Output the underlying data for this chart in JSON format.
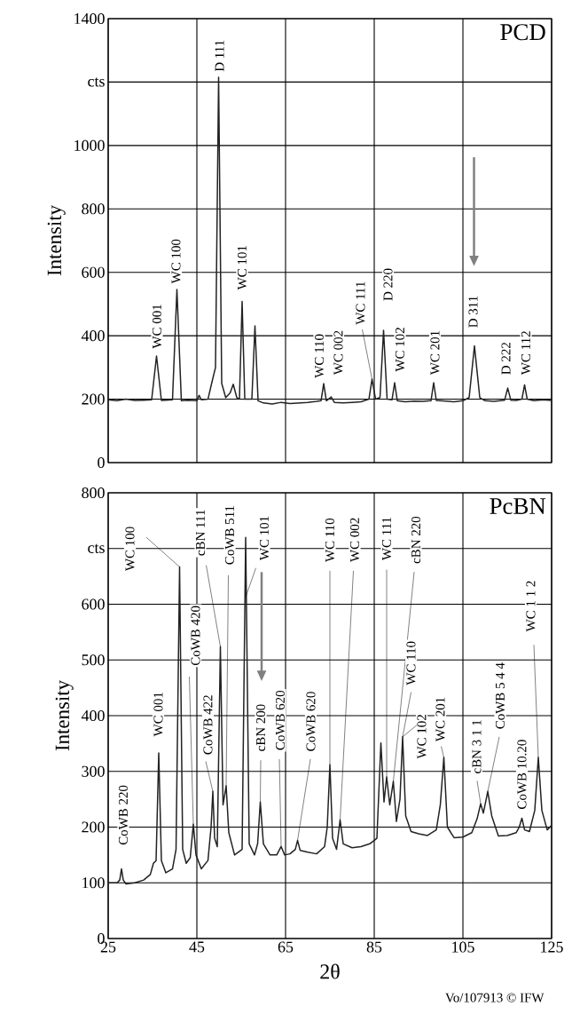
{
  "chart_data": [
    {
      "type": "line",
      "title": "PCD",
      "ylabel": "Intensity",
      "xlim": [
        25,
        125
      ],
      "ylim": [
        0,
        1400
      ],
      "xticks": [
        25,
        45,
        65,
        85,
        105,
        125
      ],
      "yticks": [
        0,
        200,
        400,
        600,
        800,
        1000,
        {
          "value": 1200,
          "label": "cts"
        },
        1400
      ],
      "tick_labels": "y",
      "grid": true,
      "series": [
        {
          "color": "#222222",
          "x": [
            25,
            27,
            29,
            31,
            33,
            34.8,
            35.9,
            37,
            39.5,
            40.5,
            41.5,
            43,
            45,
            45.5,
            46,
            47.5,
            48.4,
            49.2,
            49.9,
            50.6,
            51.5,
            52.5,
            53.2,
            54,
            54.6,
            55.2,
            55.8,
            57.4,
            58.1,
            58.8,
            60,
            62,
            64,
            66,
            68,
            70,
            72,
            73,
            73.6,
            74.2,
            75.3,
            76,
            78,
            80,
            82,
            83.8,
            84.5,
            85.3,
            86.3,
            87.1,
            87.9,
            89,
            89.6,
            90.2,
            92,
            94,
            96,
            97.8,
            98.4,
            99,
            101,
            103,
            105,
            106.4,
            107.6,
            108.8,
            110,
            112,
            114.4,
            115.1,
            115.8,
            117,
            118.3,
            118.9,
            119.5,
            121,
            123,
            125
          ],
          "values": [
            198,
            195,
            200,
            196,
            197,
            198,
            336,
            196,
            198,
            546,
            195,
            197,
            195,
            212,
            198,
            200,
            254,
            300,
            1215,
            250,
            205,
            220,
            247,
            205,
            200,
            508,
            200,
            200,
            431,
            195,
            188,
            185,
            190,
            186,
            188,
            190,
            193,
            195,
            249,
            195,
            207,
            190,
            188,
            190,
            192,
            200,
            263,
            200,
            205,
            417,
            200,
            198,
            252,
            195,
            192,
            194,
            193,
            195,
            252,
            196,
            194,
            192,
            195,
            205,
            368,
            205,
            195,
            193,
            197,
            235,
            197,
            196,
            200,
            245,
            200,
            195,
            198,
            196
          ]
        }
      ],
      "annotations": [
        {
          "text": "WC 001",
          "x": 35.9,
          "y": 336
        },
        {
          "text": "WC 100",
          "x": 40.5,
          "y": 546
        },
        {
          "text": "D 111",
          "x": 49.9,
          "y": 1215
        },
        {
          "text": "WC 101",
          "x": 55.2,
          "y": 508
        },
        {
          "text": "WC 110",
          "x": 73.6,
          "y": 249
        },
        {
          "text": "WC 002",
          "x": 75.3,
          "y": 207
        },
        {
          "text": "WC 111",
          "x": 84.5,
          "y": 263
        },
        {
          "text": "D 220",
          "x": 87.1,
          "y": 417
        },
        {
          "text": "WC 102",
          "x": 89.6,
          "y": 252
        },
        {
          "text": "WC 201",
          "x": 98.4,
          "y": 252
        },
        {
          "text": "D 311",
          "x": 107.6,
          "y": 368
        },
        {
          "text": "D 222",
          "x": 115.1,
          "y": 235
        },
        {
          "text": "WC 112",
          "x": 118.9,
          "y": 245
        }
      ]
    },
    {
      "type": "line",
      "title": "PcBN",
      "xlabel": "2θ",
      "ylabel": "Intensity",
      "xlim": [
        25,
        125
      ],
      "ylim": [
        0,
        800
      ],
      "xticks": [
        25,
        45,
        65,
        85,
        105,
        125
      ],
      "yticks": [
        0,
        100,
        200,
        300,
        400,
        500,
        600,
        {
          "value": 700,
          "label": "cts"
        },
        800
      ],
      "grid": true,
      "series": [
        {
          "color": "#222222",
          "x": [
            25,
            27,
            27.6,
            28,
            28.4,
            29,
            31,
            33,
            34.5,
            35.2,
            35.8,
            36.4,
            37,
            38,
            39.5,
            40.3,
            41.1,
            41.8,
            42.6,
            43.5,
            44.2,
            44.8,
            46,
            47.5,
            48.2,
            48.6,
            49,
            49.6,
            50.3,
            50.9,
            51.6,
            52.2,
            53.5,
            55.2,
            56.0,
            56.8,
            58,
            58.7,
            59.3,
            60,
            61.5,
            63,
            64,
            64.8,
            66,
            67.2,
            67.7,
            68.3,
            70,
            72,
            73.8,
            74.4,
            75,
            75.6,
            76.5,
            77.3,
            78,
            80,
            82,
            84,
            85.6,
            86.5,
            87.2,
            87.8,
            88.5,
            89.3,
            90,
            90.8,
            91.4,
            92.1,
            93.3,
            95,
            97,
            99,
            99.9,
            100.7,
            101.5,
            103,
            105,
            107,
            108.2,
            109,
            109.6,
            110.6,
            111.5,
            113,
            115,
            117,
            117.7,
            118.3,
            118.9,
            120,
            121.2,
            122,
            122.8,
            124,
            125
          ],
          "values": [
            100,
            100,
            105,
            125,
            105,
            98,
            100,
            105,
            115,
            135,
            140,
            333,
            140,
            118,
            125,
            160,
            667,
            160,
            135,
            145,
            205,
            150,
            125,
            140,
            200,
            264,
            180,
            165,
            524,
            240,
            274,
            190,
            150,
            160,
            720,
            170,
            150,
            170,
            245,
            170,
            150,
            150,
            165,
            150,
            152,
            160,
            176,
            158,
            155,
            152,
            165,
            200,
            312,
            180,
            160,
            213,
            170,
            163,
            165,
            170,
            180,
            351,
            245,
            290,
            240,
            282,
            210,
            250,
            362,
            220,
            192,
            188,
            185,
            195,
            240,
            325,
            200,
            181,
            182,
            190,
            215,
            242,
            225,
            264,
            220,
            184,
            185,
            190,
            200,
            216,
            195,
            192,
            230,
            325,
            230,
            195,
            203
          ]
        }
      ],
      "annotations": [
        {
          "text": "CoWB 220",
          "x": 28,
          "y": 125
        },
        {
          "text": "WC 001",
          "x": 36.4,
          "y": 333
        },
        {
          "text": "WC 100",
          "x": 41.1,
          "y": 667
        },
        {
          "text": "CoWB 420",
          "x": 44.2,
          "y": 205
        },
        {
          "text": "CoWB 422",
          "x": 48.6,
          "y": 264
        },
        {
          "text": "cBN 111",
          "x": 50.3,
          "y": 524
        },
        {
          "text": "CoWB 511",
          "x": 51.6,
          "y": 274
        },
        {
          "text": "WC 101",
          "x": 56.0,
          "y": 720
        },
        {
          "text": "cBN 200",
          "x": 59.3,
          "y": 245
        },
        {
          "text": "CoWB 620",
          "x": 64.0,
          "y": 165
        },
        {
          "text": "CoWB 620",
          "x": 67.7,
          "y": 176
        },
        {
          "text": "WC 110",
          "x": 75.0,
          "y": 312
        },
        {
          "text": "WC 002",
          "x": 77.3,
          "y": 213
        },
        {
          "text": "WC 111",
          "x": 87.8,
          "y": 290
        },
        {
          "text": "cBN 220",
          "x": 89.3,
          "y": 282
        },
        {
          "text": "WC 110",
          "x": 91.4,
          "y": 362
        },
        {
          "text": "WC 102",
          "x": 91.4,
          "y": 362
        },
        {
          "text": "WC 201",
          "x": 100.7,
          "y": 325
        },
        {
          "text": "cBN 3 1 1",
          "x": 109,
          "y": 242
        },
        {
          "text": "CoWB 5 4 4",
          "x": 110.6,
          "y": 264
        },
        {
          "text": "CoWB 10.20",
          "x": 118.3,
          "y": 216
        },
        {
          "text": "WC 1 1 2",
          "x": 122,
          "y": 325
        },
        "Vo/107913 © IFW"
      ]
    }
  ]
}
